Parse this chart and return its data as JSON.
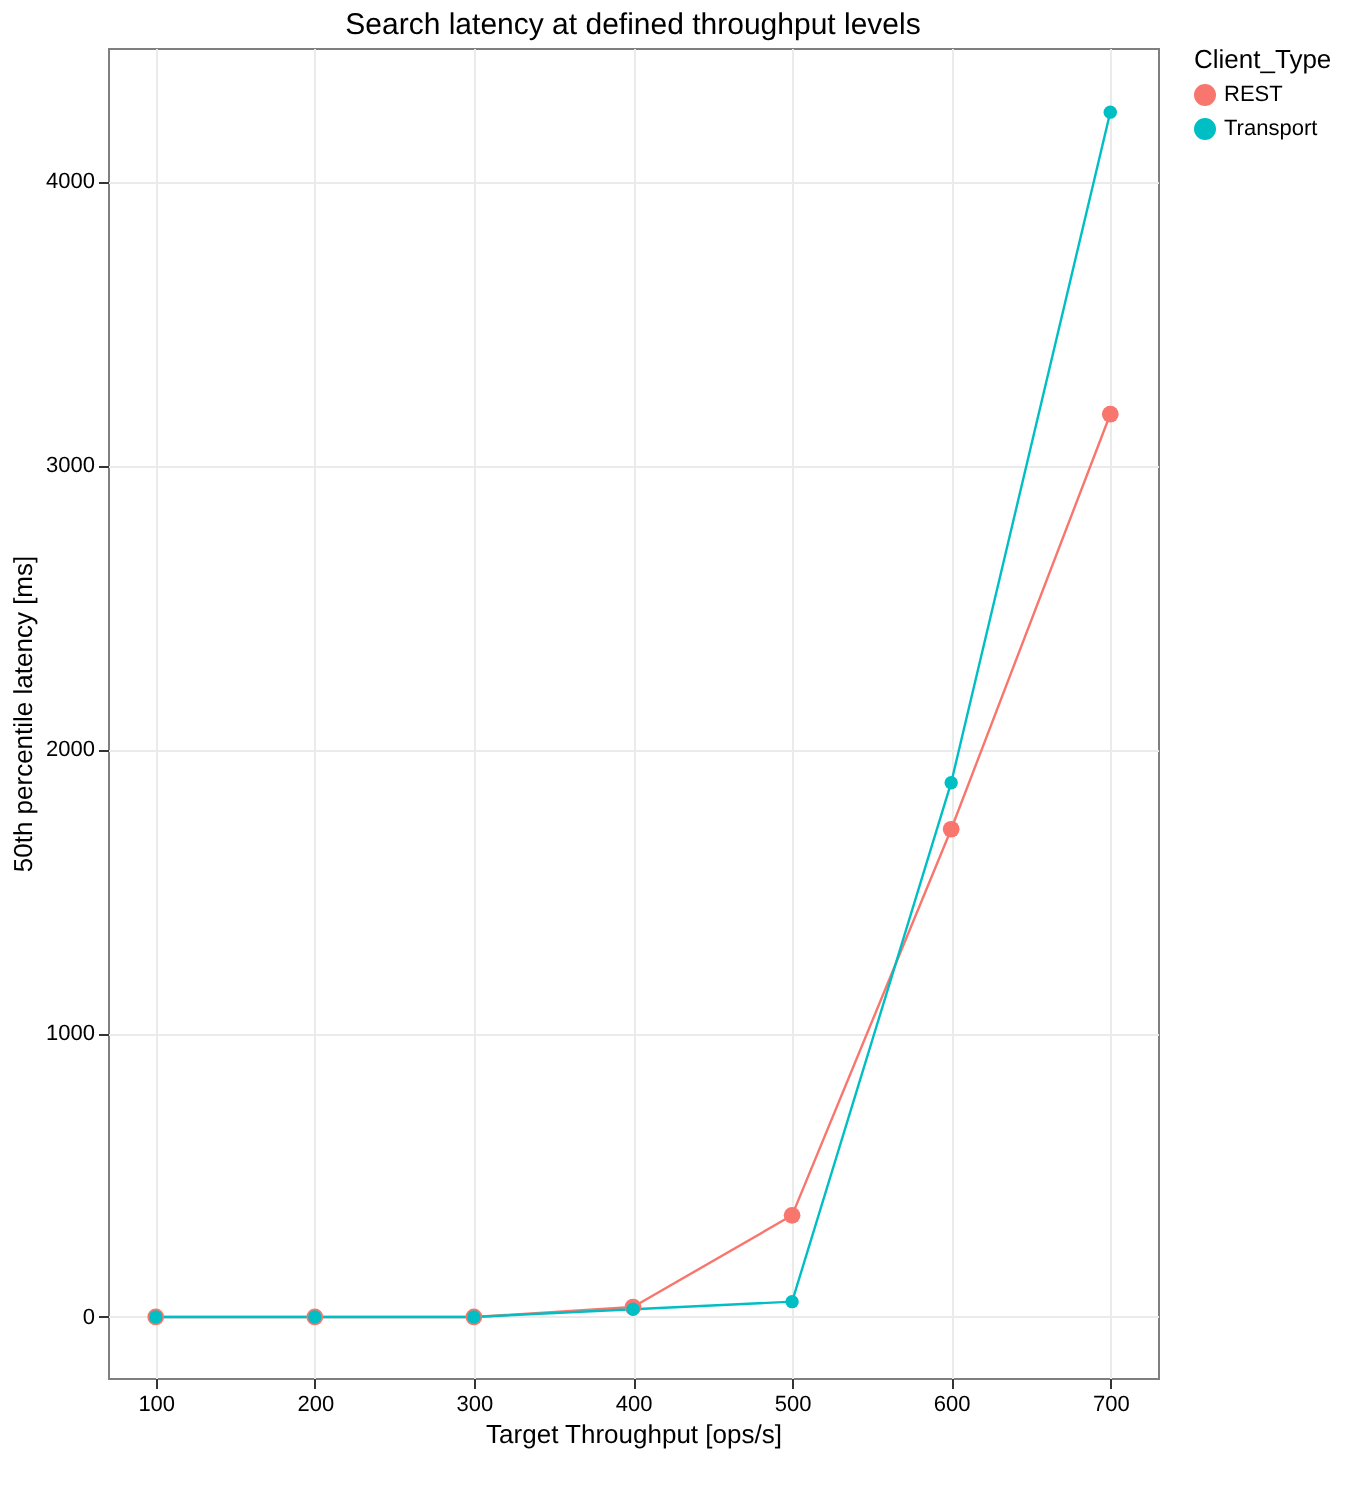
{
  "chart_data": {
    "type": "line",
    "title": "Search latency at defined throughput levels",
    "xlabel": "Target Throughput [ops/s]",
    "ylabel": "50th percentile latency [ms]",
    "legend_title": "Client_Type",
    "x": [
      100,
      200,
      300,
      400,
      500,
      600,
      700
    ],
    "series": [
      {
        "name": "REST",
        "color": "#f8766d",
        "values": [
          0,
          0,
          0,
          35,
          358,
          1718,
          3180
        ]
      },
      {
        "name": "Transport",
        "color": "#00bfc4",
        "values": [
          0,
          0,
          0,
          27,
          54,
          1882,
          4244
        ]
      }
    ],
    "xlim": [
      70,
      730
    ],
    "xticks": [
      100,
      200,
      300,
      400,
      500,
      600,
      700
    ],
    "ylim": [
      -215,
      4470
    ],
    "yticks": [
      0,
      1000,
      2000,
      3000,
      4000
    ],
    "grid": true,
    "legend": "right",
    "marker": "circle",
    "line_style": "solid"
  }
}
